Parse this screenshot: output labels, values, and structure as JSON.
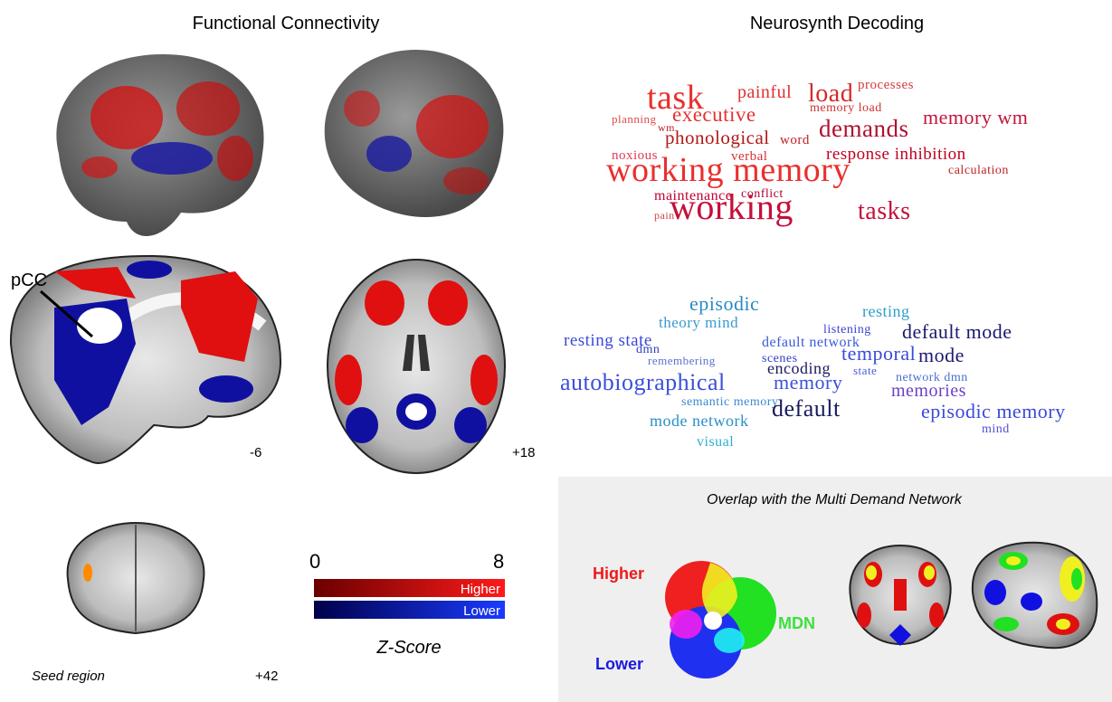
{
  "left_panel": {
    "title": "Functional Connectivity",
    "seed_label": "pCC",
    "slice_sagittal": "-6",
    "slice_axial": "+18",
    "seed_caption": "Seed region",
    "slice_coronal": "+42",
    "colorbar": {
      "min_label": "0",
      "max_label": "8",
      "higher": "Higher",
      "lower": "Lower",
      "title": "Z-Score"
    }
  },
  "right_panel": {
    "title": "Neurosynth Decoding",
    "higher_words": [
      "task",
      "painful",
      "load",
      "processes",
      "memory load",
      "planning",
      "executive",
      "wm",
      "demands",
      "memory wm",
      "phonological",
      "word",
      "noxious",
      "verbal",
      "response inhibition",
      "working memory",
      "calculation",
      "maintenance",
      "conflict",
      "pain",
      "working",
      "tasks"
    ],
    "lower_words": [
      "episodic",
      "resting",
      "theory mind",
      "listening",
      "default mode",
      "resting state",
      "dmn",
      "default network",
      "remembering",
      "scenes",
      "temporal",
      "mode",
      "encoding",
      "state",
      "network dmn",
      "autobiographical",
      "memory",
      "memories",
      "semantic memory",
      "default",
      "episodic memory",
      "mode network",
      "mind",
      "visual"
    ],
    "overlap": {
      "title": "Overlap with the Multi Demand Network",
      "higher": "Higher",
      "mdn": "MDN",
      "lower": "Lower"
    }
  }
}
